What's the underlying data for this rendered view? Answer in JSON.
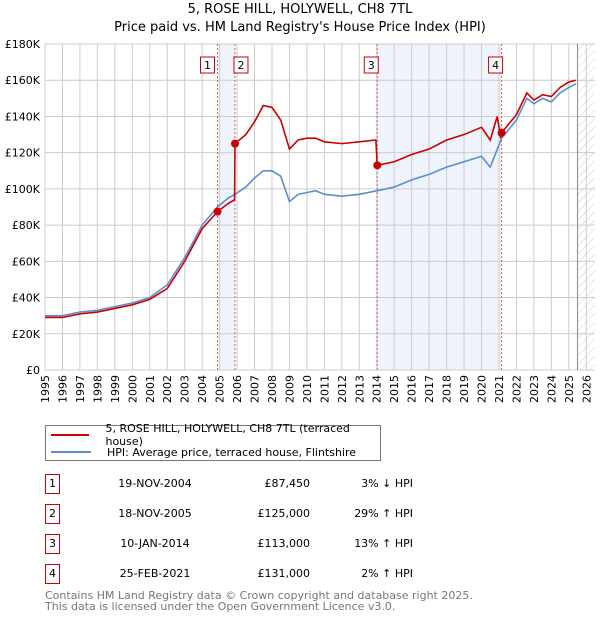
{
  "header": {
    "title": "5, ROSE HILL, HOLYWELL, CH8 7TL",
    "subtitle": "Price paid vs. HM Land Registry's House Price Index (HPI)"
  },
  "chart_data": {
    "type": "line",
    "title": "5, ROSE HILL, HOLYWELL, CH8 7TL — Price paid vs. HM Land Registry's House Price Index (HPI)",
    "xlim": [
      1995,
      2026.5
    ],
    "ylim": [
      0,
      180000
    ],
    "x_ticks": [
      "1995",
      "1996",
      "1997",
      "1998",
      "1999",
      "2000",
      "2001",
      "2002",
      "2003",
      "2004",
      "2005",
      "2006",
      "2007",
      "2008",
      "2009",
      "2010",
      "2011",
      "2012",
      "2013",
      "2014",
      "2015",
      "2016",
      "2017",
      "2018",
      "2019",
      "2020",
      "2021",
      "2022",
      "2023",
      "2024",
      "2025",
      "2026"
    ],
    "y_ticks": [
      {
        "v": 0,
        "label": "£0"
      },
      {
        "v": 20000,
        "label": "£20K"
      },
      {
        "v": 40000,
        "label": "£40K"
      },
      {
        "v": 60000,
        "label": "£60K"
      },
      {
        "v": 80000,
        "label": "£80K"
      },
      {
        "v": 100000,
        "label": "£100K"
      },
      {
        "v": 120000,
        "label": "£120K"
      },
      {
        "v": 140000,
        "label": "£140K"
      },
      {
        "v": 160000,
        "label": "£160K"
      },
      {
        "v": 180000,
        "label": "£180K"
      }
    ],
    "grid": true,
    "series": [
      {
        "name": "5, ROSE HILL, HOLYWELL, CH8 7TL (terraced house)",
        "color": "#cc0000",
        "points": [
          [
            1995,
            29000
          ],
          [
            1996,
            29000
          ],
          [
            1997,
            31000
          ],
          [
            1998,
            32000
          ],
          [
            1999,
            34000
          ],
          [
            2000,
            36000
          ],
          [
            2001,
            39000
          ],
          [
            2002,
            45000
          ],
          [
            2003,
            60000
          ],
          [
            2004,
            78000
          ],
          [
            2004.88,
            87450
          ],
          [
            2005.5,
            92000
          ],
          [
            2005.86,
            94000
          ],
          [
            2005.88,
            125000
          ],
          [
            2006.5,
            130000
          ],
          [
            2007,
            137000
          ],
          [
            2007.5,
            146000
          ],
          [
            2008,
            145000
          ],
          [
            2008.5,
            138000
          ],
          [
            2009,
            122000
          ],
          [
            2009.5,
            127000
          ],
          [
            2010,
            128000
          ],
          [
            2010.5,
            128000
          ],
          [
            2011,
            126000
          ],
          [
            2012,
            125000
          ],
          [
            2013,
            126000
          ],
          [
            2013.95,
            127000
          ],
          [
            2014.03,
            113000
          ],
          [
            2015,
            115000
          ],
          [
            2016,
            119000
          ],
          [
            2017,
            122000
          ],
          [
            2018,
            127000
          ],
          [
            2019,
            130000
          ],
          [
            2020,
            134000
          ],
          [
            2020.5,
            127000
          ],
          [
            2020.9,
            140000
          ],
          [
            2021.1,
            128000
          ],
          [
            2021.15,
            131000
          ],
          [
            2022,
            141000
          ],
          [
            2022.6,
            153000
          ],
          [
            2023,
            149000
          ],
          [
            2023.5,
            152000
          ],
          [
            2024,
            151000
          ],
          [
            2024.5,
            156000
          ],
          [
            2025,
            159000
          ],
          [
            2025.4,
            160000
          ]
        ]
      },
      {
        "name": "HPI: Average price, terraced house, Flintshire",
        "color": "#5b8fd0",
        "points": [
          [
            1995,
            30000
          ],
          [
            1996,
            30000
          ],
          [
            1997,
            32000
          ],
          [
            1998,
            33000
          ],
          [
            1999,
            35000
          ],
          [
            2000,
            37000
          ],
          [
            2001,
            40000
          ],
          [
            2002,
            47000
          ],
          [
            2003,
            62000
          ],
          [
            2004,
            80000
          ],
          [
            2004.88,
            90000
          ],
          [
            2005.5,
            95000
          ],
          [
            2005.88,
            97000
          ],
          [
            2006.5,
            101000
          ],
          [
            2007,
            106000
          ],
          [
            2007.5,
            110000
          ],
          [
            2008,
            110000
          ],
          [
            2008.5,
            107000
          ],
          [
            2009,
            93000
          ],
          [
            2009.5,
            97000
          ],
          [
            2010,
            98000
          ],
          [
            2010.5,
            99000
          ],
          [
            2011,
            97000
          ],
          [
            2012,
            96000
          ],
          [
            2013,
            97000
          ],
          [
            2014.03,
            99000
          ],
          [
            2015,
            101000
          ],
          [
            2016,
            105000
          ],
          [
            2017,
            108000
          ],
          [
            2018,
            112000
          ],
          [
            2019,
            115000
          ],
          [
            2020,
            118000
          ],
          [
            2020.5,
            112000
          ],
          [
            2021.15,
            128000
          ],
          [
            2022,
            138000
          ],
          [
            2022.6,
            150000
          ],
          [
            2023,
            147000
          ],
          [
            2023.5,
            150000
          ],
          [
            2024,
            148000
          ],
          [
            2024.5,
            153000
          ],
          [
            2025,
            156000
          ],
          [
            2025.4,
            158000
          ]
        ]
      }
    ],
    "sales": [
      {
        "n": "1",
        "x": 2004.88,
        "value": 87450
      },
      {
        "n": "2",
        "x": 2005.88,
        "value": 125000
      },
      {
        "n": "3",
        "x": 2014.03,
        "value": 113000
      },
      {
        "n": "4",
        "x": 2021.15,
        "value": 131000
      }
    ],
    "shaded_ranges": [
      [
        2004.88,
        2005.88
      ],
      [
        2014.03,
        2021.15
      ]
    ],
    "forecast_start": 2025.5,
    "legend_position": "below"
  },
  "legend": {
    "red": "5, ROSE HILL, HOLYWELL, CH8 7TL (terraced house)",
    "blue": "HPI: Average price, terraced house, Flintshire"
  },
  "table": [
    {
      "n": "1",
      "date": "19-NOV-2004",
      "price": "£87,450",
      "hpi": "3% ↓ HPI"
    },
    {
      "n": "2",
      "date": "18-NOV-2005",
      "price": "£125,000",
      "hpi": "29% ↑ HPI"
    },
    {
      "n": "3",
      "date": "10-JAN-2014",
      "price": "£113,000",
      "hpi": "13% ↑ HPI"
    },
    {
      "n": "4",
      "date": "25-FEB-2021",
      "price": "£131,000",
      "hpi": "2% ↑ HPI"
    }
  ],
  "footer": {
    "line1": "Contains HM Land Registry data © Crown copyright and database right 2025.",
    "line2": "This data is licensed under the Open Government Licence v3.0."
  }
}
